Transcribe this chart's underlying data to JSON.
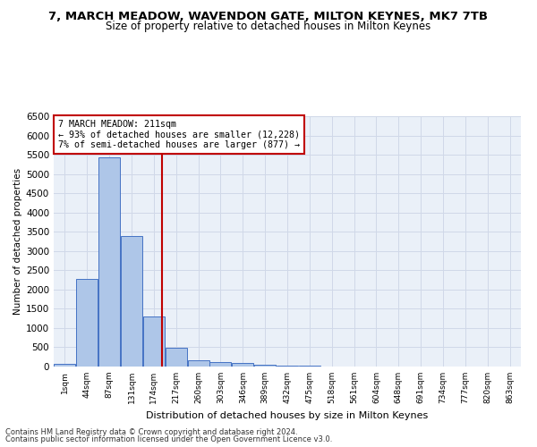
{
  "title": "7, MARCH MEADOW, WAVENDON GATE, MILTON KEYNES, MK7 7TB",
  "subtitle": "Size of property relative to detached houses in Milton Keynes",
  "xlabel": "Distribution of detached houses by size in Milton Keynes",
  "ylabel": "Number of detached properties",
  "footer_line1": "Contains HM Land Registry data © Crown copyright and database right 2024.",
  "footer_line2": "Contains public sector information licensed under the Open Government Licence v3.0.",
  "bins": [
    "1sqm",
    "44sqm",
    "87sqm",
    "131sqm",
    "174sqm",
    "217sqm",
    "260sqm",
    "303sqm",
    "346sqm",
    "389sqm",
    "432sqm",
    "475sqm",
    "518sqm",
    "561sqm",
    "604sqm",
    "648sqm",
    "691sqm",
    "734sqm",
    "777sqm",
    "820sqm",
    "863sqm"
  ],
  "values": [
    75,
    2280,
    5430,
    3380,
    1310,
    480,
    170,
    110,
    85,
    55,
    30,
    15,
    10,
    5,
    3,
    2,
    1,
    1,
    0,
    0,
    0
  ],
  "bar_color": "#aec6e8",
  "bar_edge_color": "#4472c4",
  "property_sqm": 211,
  "annotation_text_line1": "7 MARCH MEADOW: 211sqm",
  "annotation_text_line2": "← 93% of detached houses are smaller (12,228)",
  "annotation_text_line3": "7% of semi-detached houses are larger (877) →",
  "vline_color": "#c00000",
  "annotation_box_color": "#c00000",
  "ylim": [
    0,
    6500
  ],
  "yticks": [
    0,
    500,
    1000,
    1500,
    2000,
    2500,
    3000,
    3500,
    4000,
    4500,
    5000,
    5500,
    6000,
    6500
  ],
  "grid_color": "#d0d8e8",
  "bg_color": "#eaf0f8",
  "title_fontsize": 9.5,
  "subtitle_fontsize": 8.5
}
